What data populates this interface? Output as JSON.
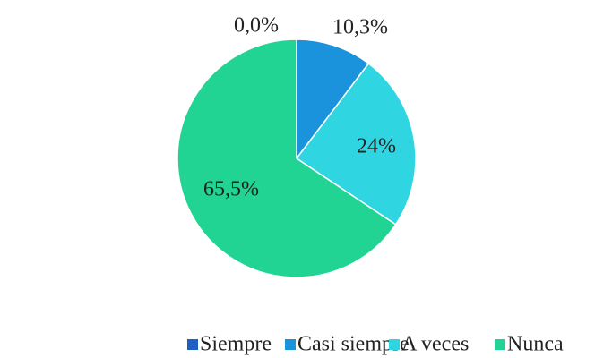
{
  "chart_data": {
    "type": "pie",
    "categories": [
      "Siempre",
      "Casi siempre",
      "A veces",
      "Nunca"
    ],
    "values": [
      0,
      10.3,
      24,
      65.5
    ],
    "value_labels": [
      "0,0%",
      "10,3%",
      "24%",
      "65,5%"
    ],
    "colors": [
      "#1f5fc4",
      "#1b93dc",
      "#2fd6e2",
      "#22d494"
    ],
    "legend": "bottom"
  }
}
